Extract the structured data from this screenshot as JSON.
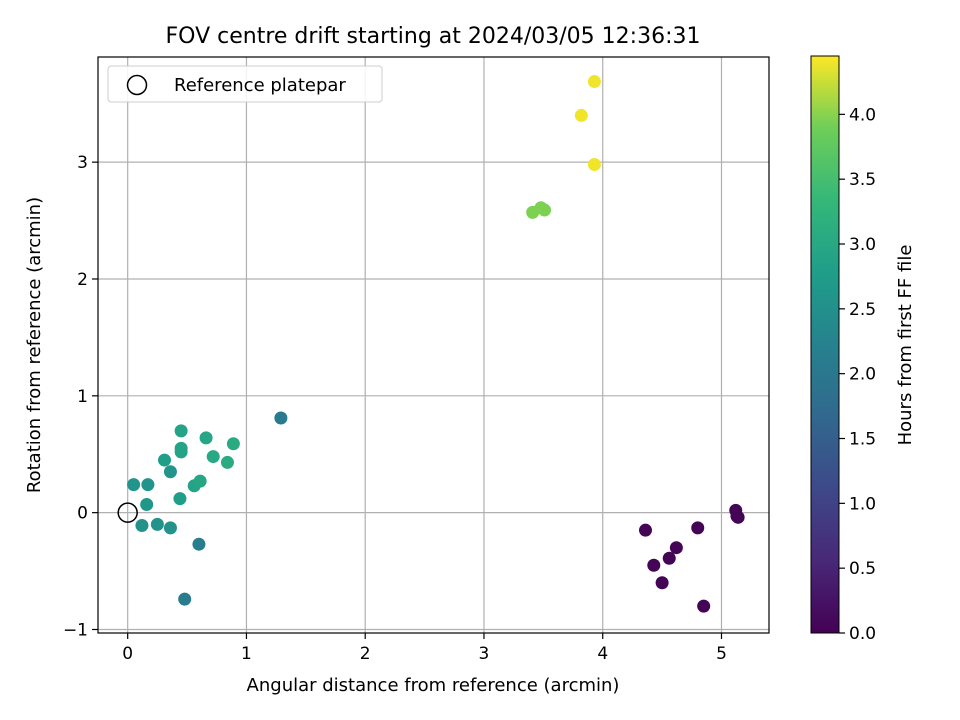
{
  "chart_data": {
    "type": "scatter",
    "title": "FOV centre drift starting at 2024/03/05 12:36:31",
    "xlabel": "Angular distance from reference (arcmin)",
    "ylabel": "Rotation from reference (arcmin)",
    "xlim": [
      -0.25,
      5.4
    ],
    "ylim": [
      -1.03,
      3.9
    ],
    "xticks": [
      "0",
      "1",
      "2",
      "3",
      "4",
      "5"
    ],
    "yticks": [
      "−1",
      "0",
      "1",
      "2",
      "3"
    ],
    "grid": true,
    "legend": {
      "placement": "upper-left",
      "entries": [
        "Reference platepar"
      ]
    },
    "reference_point": {
      "x": 0,
      "y": 0,
      "label": "Reference platepar"
    },
    "colorbar": {
      "label": "Hours from first FF file",
      "colormap": "viridis",
      "range": [
        0.0,
        4.45
      ],
      "ticks": [
        "0.0",
        "0.5",
        "1.0",
        "1.5",
        "2.0",
        "2.5",
        "3.0",
        "3.5",
        "4.0"
      ]
    },
    "points": [
      {
        "x": 5.12,
        "y": 0.02,
        "hours": 0.05
      },
      {
        "x": 5.14,
        "y": -0.04,
        "hours": 0.05
      },
      {
        "x": 5.13,
        "y": -0.03,
        "hours": 0.05
      },
      {
        "x": 4.8,
        "y": -0.13,
        "hours": 0.05
      },
      {
        "x": 4.36,
        "y": -0.15,
        "hours": 0.05
      },
      {
        "x": 4.62,
        "y": -0.3,
        "hours": 0.05
      },
      {
        "x": 4.56,
        "y": -0.39,
        "hours": 0.05
      },
      {
        "x": 4.43,
        "y": -0.45,
        "hours": 0.05
      },
      {
        "x": 4.5,
        "y": -0.6,
        "hours": 0.05
      },
      {
        "x": 4.85,
        "y": -0.8,
        "hours": 0.05
      },
      {
        "x": 1.29,
        "y": 0.81,
        "hours": 2.05
      },
      {
        "x": 0.6,
        "y": -0.27,
        "hours": 2.15
      },
      {
        "x": 0.48,
        "y": -0.74,
        "hours": 2.1
      },
      {
        "x": 0.12,
        "y": -0.11,
        "hours": 2.55
      },
      {
        "x": 0.25,
        "y": -0.1,
        "hours": 2.55
      },
      {
        "x": 0.36,
        "y": -0.13,
        "hours": 2.55
      },
      {
        "x": 0.05,
        "y": 0.24,
        "hours": 2.6
      },
      {
        "x": 0.17,
        "y": 0.24,
        "hours": 2.6
      },
      {
        "x": 0.16,
        "y": 0.07,
        "hours": 2.65
      },
      {
        "x": 0.36,
        "y": 0.35,
        "hours": 2.6
      },
      {
        "x": 0.31,
        "y": 0.45,
        "hours": 2.8
      },
      {
        "x": 0.44,
        "y": 0.12,
        "hours": 2.8
      },
      {
        "x": 0.45,
        "y": 0.7,
        "hours": 2.9
      },
      {
        "x": 0.45,
        "y": 0.55,
        "hours": 2.9
      },
      {
        "x": 0.45,
        "y": 0.52,
        "hours": 2.9
      },
      {
        "x": 0.56,
        "y": 0.23,
        "hours": 2.9
      },
      {
        "x": 0.61,
        "y": 0.27,
        "hours": 2.95
      },
      {
        "x": 0.66,
        "y": 0.64,
        "hours": 2.95
      },
      {
        "x": 0.72,
        "y": 0.48,
        "hours": 3.0
      },
      {
        "x": 0.84,
        "y": 0.43,
        "hours": 3.05
      },
      {
        "x": 0.89,
        "y": 0.59,
        "hours": 3.05
      },
      {
        "x": 3.41,
        "y": 2.57,
        "hours": 3.95
      },
      {
        "x": 3.48,
        "y": 2.61,
        "hours": 3.95
      },
      {
        "x": 3.51,
        "y": 2.59,
        "hours": 3.95
      },
      {
        "x": 3.82,
        "y": 3.4,
        "hours": 4.4
      },
      {
        "x": 3.93,
        "y": 3.69,
        "hours": 4.4
      },
      {
        "x": 3.93,
        "y": 2.98,
        "hours": 4.4
      }
    ]
  }
}
